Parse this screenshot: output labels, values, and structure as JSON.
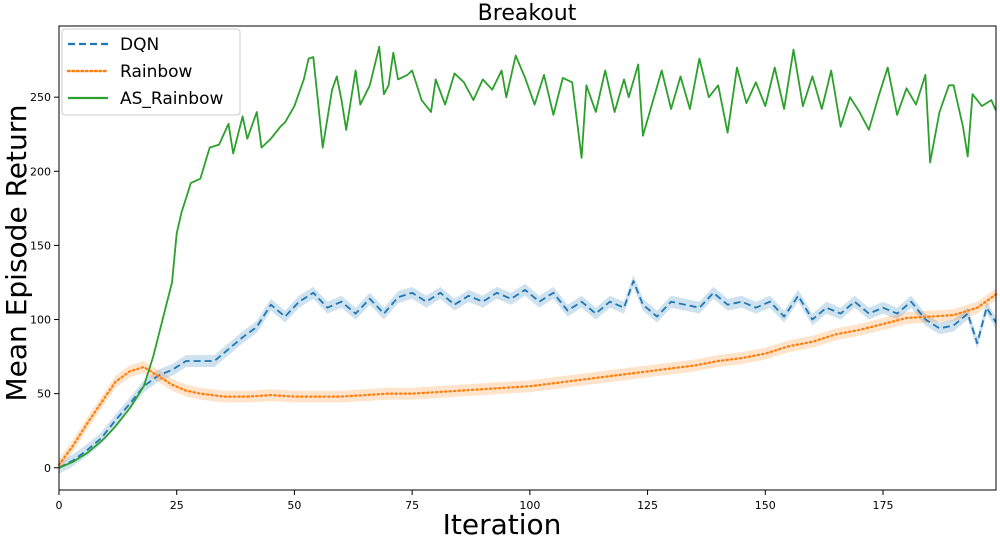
{
  "chart_data": {
    "type": "line",
    "title": "Breakout",
    "xlabel": "Iteration",
    "ylabel": "Mean Episode Return",
    "xlim": [
      0,
      199
    ],
    "ylim": [
      -15,
      298
    ],
    "xticks": [
      0,
      25,
      50,
      75,
      100,
      125,
      150,
      175
    ],
    "yticks": [
      0,
      50,
      100,
      150,
      200,
      250
    ],
    "grid": false,
    "legend_position": "top-left",
    "series": [
      {
        "name": "DQN",
        "color": "#1f77b4",
        "dash": "dashed",
        "band": true,
        "points": [
          [
            0,
            0
          ],
          [
            3,
            5
          ],
          [
            6,
            12
          ],
          [
            9,
            20
          ],
          [
            12,
            32
          ],
          [
            15,
            43
          ],
          [
            18,
            55
          ],
          [
            21,
            62
          ],
          [
            24,
            66
          ],
          [
            27,
            72
          ],
          [
            30,
            72
          ],
          [
            33,
            72
          ],
          [
            36,
            80
          ],
          [
            39,
            88
          ],
          [
            42,
            95
          ],
          [
            45,
            110
          ],
          [
            48,
            102
          ],
          [
            51,
            112
          ],
          [
            54,
            118
          ],
          [
            57,
            108
          ],
          [
            60,
            112
          ],
          [
            63,
            104
          ],
          [
            66,
            114
          ],
          [
            69,
            104
          ],
          [
            72,
            115
          ],
          [
            75,
            118
          ],
          [
            78,
            112
          ],
          [
            81,
            118
          ],
          [
            84,
            110
          ],
          [
            87,
            116
          ],
          [
            90,
            112
          ],
          [
            93,
            118
          ],
          [
            96,
            114
          ],
          [
            99,
            120
          ],
          [
            102,
            112
          ],
          [
            105,
            118
          ],
          [
            108,
            106
          ],
          [
            111,
            112
          ],
          [
            114,
            104
          ],
          [
            117,
            112
          ],
          [
            120,
            108
          ],
          [
            122,
            126
          ],
          [
            124,
            110
          ],
          [
            127,
            102
          ],
          [
            130,
            112
          ],
          [
            133,
            110
          ],
          [
            136,
            108
          ],
          [
            139,
            118
          ],
          [
            142,
            110
          ],
          [
            145,
            112
          ],
          [
            148,
            108
          ],
          [
            151,
            112
          ],
          [
            154,
            102
          ],
          [
            157,
            116
          ],
          [
            160,
            100
          ],
          [
            163,
            108
          ],
          [
            166,
            104
          ],
          [
            169,
            112
          ],
          [
            172,
            104
          ],
          [
            175,
            108
          ],
          [
            178,
            104
          ],
          [
            181,
            112
          ],
          [
            184,
            100
          ],
          [
            187,
            94
          ],
          [
            190,
            96
          ],
          [
            193,
            104
          ],
          [
            195,
            84
          ],
          [
            197,
            108
          ],
          [
            199,
            98
          ]
        ]
      },
      {
        "name": "Rainbow",
        "color": "#ff7f0e",
        "dash": "dotted",
        "band": true,
        "points": [
          [
            0,
            2
          ],
          [
            3,
            15
          ],
          [
            6,
            30
          ],
          [
            9,
            44
          ],
          [
            12,
            58
          ],
          [
            15,
            65
          ],
          [
            18,
            68
          ],
          [
            21,
            62
          ],
          [
            24,
            56
          ],
          [
            27,
            52
          ],
          [
            30,
            50
          ],
          [
            35,
            48
          ],
          [
            40,
            48
          ],
          [
            45,
            49
          ],
          [
            50,
            48
          ],
          [
            55,
            48
          ],
          [
            60,
            48
          ],
          [
            65,
            49
          ],
          [
            70,
            50
          ],
          [
            75,
            50
          ],
          [
            80,
            51
          ],
          [
            85,
            52
          ],
          [
            90,
            53
          ],
          [
            95,
            54
          ],
          [
            100,
            55
          ],
          [
            105,
            57
          ],
          [
            110,
            59
          ],
          [
            115,
            61
          ],
          [
            120,
            63
          ],
          [
            125,
            65
          ],
          [
            130,
            67
          ],
          [
            135,
            69
          ],
          [
            140,
            72
          ],
          [
            145,
            74
          ],
          [
            150,
            77
          ],
          [
            155,
            82
          ],
          [
            160,
            85
          ],
          [
            165,
            90
          ],
          [
            170,
            93
          ],
          [
            175,
            97
          ],
          [
            180,
            101
          ],
          [
            185,
            102
          ],
          [
            190,
            103
          ],
          [
            195,
            108
          ],
          [
            199,
            117
          ]
        ]
      },
      {
        "name": "AS_Rainbow",
        "color": "#2ca02c",
        "dash": "solid",
        "band": false,
        "points": [
          [
            0,
            0
          ],
          [
            3,
            4
          ],
          [
            6,
            10
          ],
          [
            9,
            18
          ],
          [
            10,
            21
          ],
          [
            12,
            28
          ],
          [
            15,
            40
          ],
          [
            18,
            55
          ],
          [
            20,
            75
          ],
          [
            22,
            100
          ],
          [
            24,
            125
          ],
          [
            25,
            158
          ],
          [
            26,
            172
          ],
          [
            27,
            182
          ],
          [
            28,
            192
          ],
          [
            30,
            195
          ],
          [
            32,
            216
          ],
          [
            34,
            218
          ],
          [
            36,
            232
          ],
          [
            37,
            212
          ],
          [
            39,
            237
          ],
          [
            40,
            222
          ],
          [
            42,
            240
          ],
          [
            43,
            216
          ],
          [
            45,
            222
          ],
          [
            47,
            230
          ],
          [
            48,
            233
          ],
          [
            50,
            244
          ],
          [
            52,
            262
          ],
          [
            53,
            276
          ],
          [
            54,
            277
          ],
          [
            55,
            247
          ],
          [
            56,
            216
          ],
          [
            58,
            255
          ],
          [
            59,
            264
          ],
          [
            60,
            248
          ],
          [
            61,
            228
          ],
          [
            63,
            268
          ],
          [
            64,
            245
          ],
          [
            66,
            258
          ],
          [
            68,
            284
          ],
          [
            69,
            252
          ],
          [
            70,
            258
          ],
          [
            71,
            280
          ],
          [
            72,
            262
          ],
          [
            74,
            265
          ],
          [
            75,
            268
          ],
          [
            77,
            248
          ],
          [
            79,
            240
          ],
          [
            80,
            262
          ],
          [
            82,
            245
          ],
          [
            84,
            266
          ],
          [
            86,
            260
          ],
          [
            88,
            248
          ],
          [
            90,
            262
          ],
          [
            92,
            255
          ],
          [
            94,
            268
          ],
          [
            95,
            250
          ],
          [
            97,
            278
          ],
          [
            99,
            263
          ],
          [
            101,
            245
          ],
          [
            103,
            265
          ],
          [
            105,
            238
          ],
          [
            107,
            263
          ],
          [
            109,
            260
          ],
          [
            111,
            209
          ],
          [
            112,
            258
          ],
          [
            114,
            240
          ],
          [
            116,
            268
          ],
          [
            118,
            240
          ],
          [
            120,
            262
          ],
          [
            121,
            250
          ],
          [
            123,
            272
          ],
          [
            124,
            224
          ],
          [
            126,
            246
          ],
          [
            128,
            268
          ],
          [
            130,
            242
          ],
          [
            132,
            264
          ],
          [
            134,
            242
          ],
          [
            136,
            276
          ],
          [
            138,
            250
          ],
          [
            140,
            258
          ],
          [
            142,
            226
          ],
          [
            144,
            270
          ],
          [
            146,
            246
          ],
          [
            148,
            260
          ],
          [
            150,
            244
          ],
          [
            152,
            270
          ],
          [
            154,
            242
          ],
          [
            156,
            282
          ],
          [
            158,
            244
          ],
          [
            160,
            264
          ],
          [
            162,
            242
          ],
          [
            164,
            268
          ],
          [
            166,
            230
          ],
          [
            168,
            250
          ],
          [
            170,
            240
          ],
          [
            172,
            228
          ],
          [
            174,
            250
          ],
          [
            176,
            270
          ],
          [
            178,
            238
          ],
          [
            180,
            256
          ],
          [
            182,
            245
          ],
          [
            184,
            265
          ],
          [
            185,
            206
          ],
          [
            187,
            240
          ],
          [
            189,
            258
          ],
          [
            190,
            258
          ],
          [
            192,
            230
          ],
          [
            193,
            210
          ],
          [
            194,
            252
          ],
          [
            196,
            244
          ],
          [
            198,
            248
          ],
          [
            199,
            241
          ]
        ]
      }
    ]
  }
}
